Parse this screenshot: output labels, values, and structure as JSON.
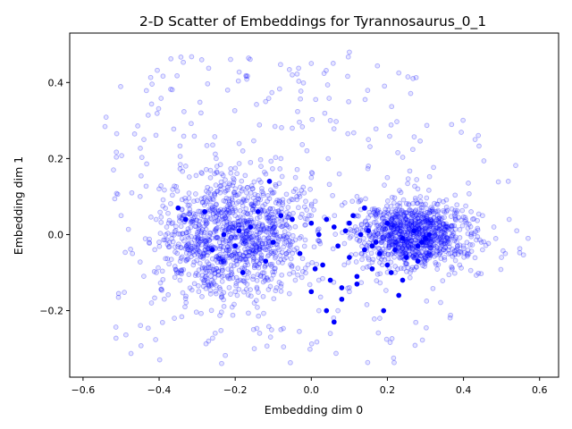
{
  "chart_data": {
    "type": "scatter",
    "title": "2-D Scatter of Embeddings for Tyrannosaurus_0_1",
    "xlabel": "Embedding dim 0",
    "ylabel": "Embedding dim 1",
    "xlim": [
      -0.635,
      0.65
    ],
    "ylim": [
      -0.375,
      0.53
    ],
    "xticks": [
      -0.6,
      -0.4,
      -0.2,
      0.0,
      0.2,
      0.4,
      0.6
    ],
    "xtick_labels": [
      "−0.6",
      "−0.4",
      "−0.2",
      "0.0",
      "0.2",
      "0.4",
      "0.6"
    ],
    "yticks": [
      -0.2,
      0.0,
      0.2,
      0.4
    ],
    "ytick_labels": [
      "−0.2",
      "0.0",
      "0.2",
      "0.4"
    ],
    "grid": false,
    "legend": "none",
    "colors": {
      "background_points": "#0000ff",
      "highlight_points": "#0000ff"
    },
    "series": [
      {
        "role": "background",
        "opacity": 0.22,
        "cloud_extent": {
          "x": [
            -0.55,
            0.59
          ],
          "y": [
            -0.34,
            0.49
          ]
        },
        "cloud_density_peak": {
          "x": 0.25,
          "y": 0.0
        },
        "x": [
          -0.52,
          -0.5,
          -0.47,
          -0.44,
          -0.42,
          -0.4,
          -0.38,
          -0.36,
          -0.33,
          -0.31,
          -0.29,
          -0.27,
          -0.25,
          -0.22,
          -0.2,
          -0.18,
          -0.15,
          -0.12,
          -0.1,
          -0.08,
          -0.05,
          -0.03,
          0.0,
          0.02,
          0.05,
          0.07,
          0.1,
          0.12,
          0.15,
          0.18,
          0.2,
          0.23,
          0.26,
          0.28,
          0.31,
          0.33,
          0.36,
          0.39,
          0.42,
          0.45,
          0.48,
          0.51,
          0.54,
          0.57,
          -0.45,
          -0.35,
          -0.25,
          -0.15,
          -0.05,
          0.05,
          0.15,
          0.25,
          0.35,
          0.45,
          -0.3,
          -0.2,
          -0.1,
          0.0,
          0.1,
          0.2,
          0.3,
          0.4,
          0.5,
          -0.4,
          -0.28,
          -0.18,
          -0.08,
          0.02,
          0.12,
          0.22,
          0.32,
          0.42,
          0.52
        ],
        "y": [
          0.17,
          0.05,
          -0.05,
          0.25,
          -0.18,
          0.12,
          0.02,
          -0.22,
          0.18,
          -0.08,
          0.32,
          -0.28,
          0.08,
          0.38,
          -0.15,
          0.22,
          -0.3,
          0.35,
          0.0,
          -0.25,
          0.42,
          0.1,
          0.45,
          -0.12,
          0.3,
          -0.2,
          0.48,
          0.05,
          0.25,
          -0.22,
          0.15,
          0.05,
          -0.1,
          0.12,
          -0.05,
          0.08,
          0.02,
          -0.08,
          0.06,
          -0.04,
          0.02,
          -0.05,
          0.01,
          -0.01,
          0.1,
          -0.1,
          0.2,
          -0.18,
          0.28,
          -0.26,
          0.18,
          -0.02,
          -0.06,
          0.05,
          0.0,
          0.05,
          -0.05,
          0.15,
          -0.15,
          0.0,
          0.08,
          -0.03,
          -0.06,
          -0.02,
          -0.12,
          0.12,
          0.2,
          -0.2,
          0.1,
          -0.1,
          0.03,
          0.0,
          0.04
        ]
      },
      {
        "role": "highlight",
        "opacity": 1.0,
        "x": [
          -0.35,
          -0.33,
          -0.28,
          -0.23,
          -0.2,
          -0.19,
          -0.16,
          -0.14,
          -0.12,
          -0.1,
          -0.08,
          -0.05,
          -0.03,
          0.0,
          0.01,
          0.02,
          0.03,
          0.04,
          0.05,
          0.06,
          0.07,
          0.08,
          0.09,
          0.1,
          0.11,
          0.12,
          0.13,
          0.14,
          0.15,
          0.16,
          0.17,
          0.18,
          0.2,
          0.21,
          0.22,
          0.24,
          0.25,
          0.27,
          0.28,
          0.29,
          0.3,
          0.31,
          -0.26,
          -0.18,
          0.0,
          0.04,
          0.08,
          0.12,
          0.16,
          0.2,
          0.24,
          0.28,
          0.06,
          0.1,
          -0.11,
          0.14,
          0.19,
          0.23
        ],
        "y": [
          0.07,
          0.04,
          0.06,
          0.0,
          -0.03,
          0.01,
          0.02,
          0.06,
          -0.07,
          -0.02,
          0.05,
          0.04,
          -0.05,
          0.03,
          -0.09,
          0.0,
          -0.08,
          0.04,
          -0.12,
          0.02,
          -0.03,
          -0.14,
          0.01,
          -0.06,
          0.05,
          -0.11,
          0.0,
          -0.04,
          0.01,
          -0.09,
          -0.02,
          -0.05,
          0.03,
          -0.1,
          -0.04,
          -0.01,
          -0.06,
          0.01,
          -0.03,
          -0.02,
          -0.01,
          0.0,
          -0.04,
          -0.1,
          -0.15,
          -0.2,
          -0.17,
          -0.13,
          -0.03,
          -0.08,
          -0.12,
          -0.07,
          -0.23,
          0.03,
          0.14,
          0.07,
          -0.2,
          -0.16
        ]
      }
    ]
  }
}
